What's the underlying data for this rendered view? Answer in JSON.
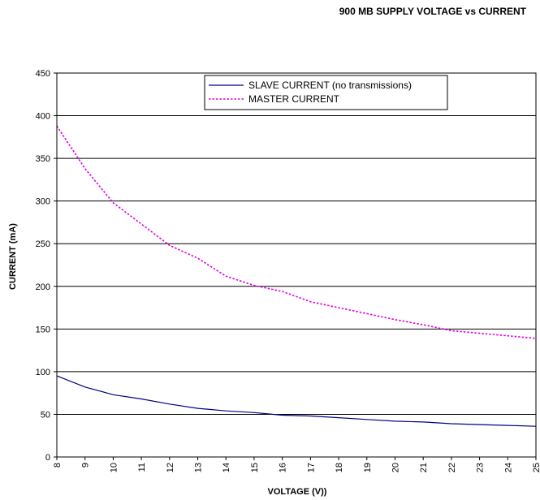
{
  "chart_data": {
    "type": "line",
    "title": "900 MB SUPPLY VOLTAGE vs CURRENT",
    "xlabel": "VOLTAGE (V))",
    "ylabel": "CURRENT (mA)",
    "xlim": [
      8,
      25
    ],
    "ylim": [
      0,
      450
    ],
    "x": [
      8,
      9,
      10,
      11,
      12,
      13,
      14,
      15,
      16,
      17,
      18,
      19,
      20,
      21,
      22,
      23,
      24,
      25
    ],
    "x_tick_labels": [
      "8",
      "9",
      "10",
      "11",
      "12",
      "13",
      "14",
      "15",
      "16",
      "17",
      "18",
      "19",
      "20",
      "21",
      "22",
      "23",
      "24",
      "25"
    ],
    "y_tick_labels": [
      "0",
      "50",
      "100",
      "150",
      "200",
      "250",
      "300",
      "350",
      "400",
      "450"
    ],
    "y_ticks": [
      0,
      50,
      100,
      150,
      200,
      250,
      300,
      350,
      400,
      450
    ],
    "grid": true,
    "legend_position": "top",
    "series": [
      {
        "name": "SLAVE CURRENT (no transmissions)",
        "style": "solid",
        "color": "#000080",
        "values": [
          95,
          82,
          73,
          68,
          62,
          57,
          54,
          52,
          49,
          48,
          46,
          44,
          42,
          41,
          39,
          38,
          37,
          36
        ]
      },
      {
        "name": "MASTER CURRENT",
        "style": "dotted",
        "color": "#e000e0",
        "values": [
          388,
          338,
          298,
          273,
          248,
          233,
          212,
          201,
          194,
          182,
          175,
          168,
          161,
          155,
          148,
          145,
          142,
          139
        ]
      }
    ]
  }
}
